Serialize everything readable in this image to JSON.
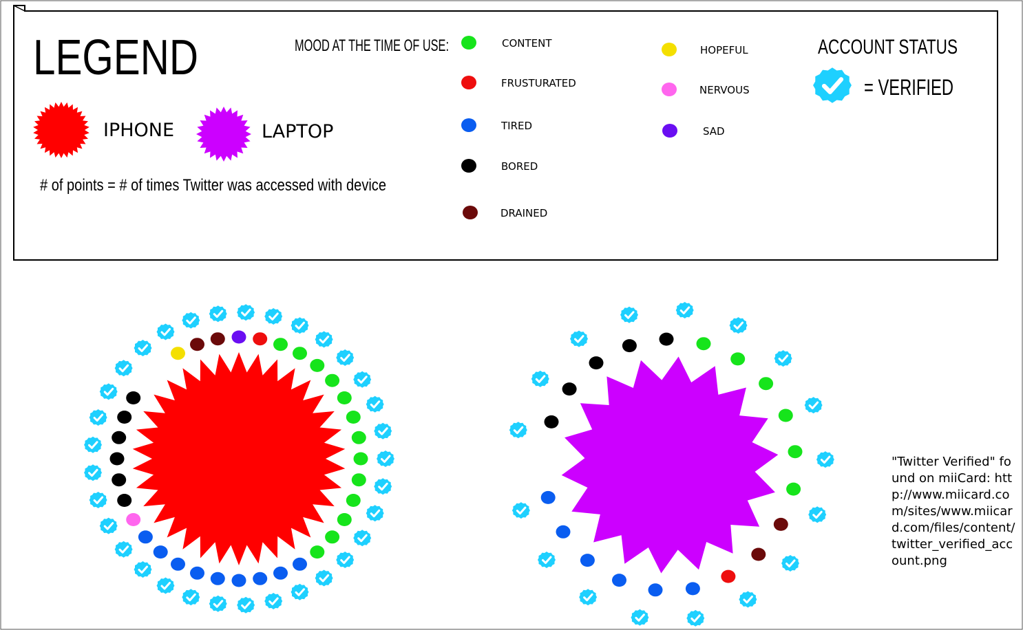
{
  "legend": {
    "title": "LEGEND",
    "devices": [
      {
        "id": "iphone",
        "label": "IPHONE",
        "color": "#ff0000"
      },
      {
        "id": "laptop",
        "label": "LAPTOP",
        "color": "#cc00ff"
      }
    ],
    "points_note": "# of points = # of times Twitter was accessed with device",
    "mood_heading": "MOOD AT THE TIME OF USE:",
    "moods": [
      {
        "id": "content",
        "label": "CONTENT",
        "color": "#16e41b"
      },
      {
        "id": "frustrated",
        "label": "FRUSTURATED",
        "color": "#ee0e0e"
      },
      {
        "id": "tired",
        "label": "TIRED",
        "color": "#0a5df0"
      },
      {
        "id": "bored",
        "label": "BORED",
        "color": "#000000"
      },
      {
        "id": "drained",
        "label": "DRAINED",
        "color": "#6b0a0a"
      },
      {
        "id": "hopeful",
        "label": "HOPEFUL",
        "color": "#f4df00"
      },
      {
        "id": "nervous",
        "label": "NERVOUS",
        "color": "#ff66ee"
      },
      {
        "id": "sad",
        "label": "SAD",
        "color": "#6a0ef2"
      }
    ],
    "account_heading": "ACCOUNT STATUS",
    "verified_label": "= VERIFIED",
    "verified_color": "#1ed0ff"
  },
  "charts": [
    {
      "device": "iphone",
      "inner_points": [
        "hopeful",
        "drained",
        "drained",
        "sad",
        "frustrated",
        "content",
        "content",
        "content",
        "content",
        "content",
        "content",
        "content",
        "content",
        "content",
        "content",
        "content",
        "content",
        "content",
        "tired",
        "tired",
        "tired",
        "tired",
        "tired",
        "tired",
        "tired",
        "tired",
        "tired",
        "nervous",
        "bored",
        "bored",
        "bored",
        "bored",
        "bored",
        "bored"
      ],
      "verified_badge_count": 33
    },
    {
      "device": "laptop",
      "inner_points": [
        "bored",
        "bored",
        "bored",
        "bored",
        "bored",
        "content",
        "content",
        "content",
        "content",
        "content",
        "content",
        "drained",
        "drained",
        "frustrated",
        "tired",
        "tired",
        "tired",
        "tired",
        "tired",
        "tired"
      ],
      "verified_badge_count": 17
    }
  ],
  "credit": "\"Twitter Verified\" found on miiCard: http://www.miicard.com/sites/www.miicard.com/files/content/twitter_verified_account.png"
}
